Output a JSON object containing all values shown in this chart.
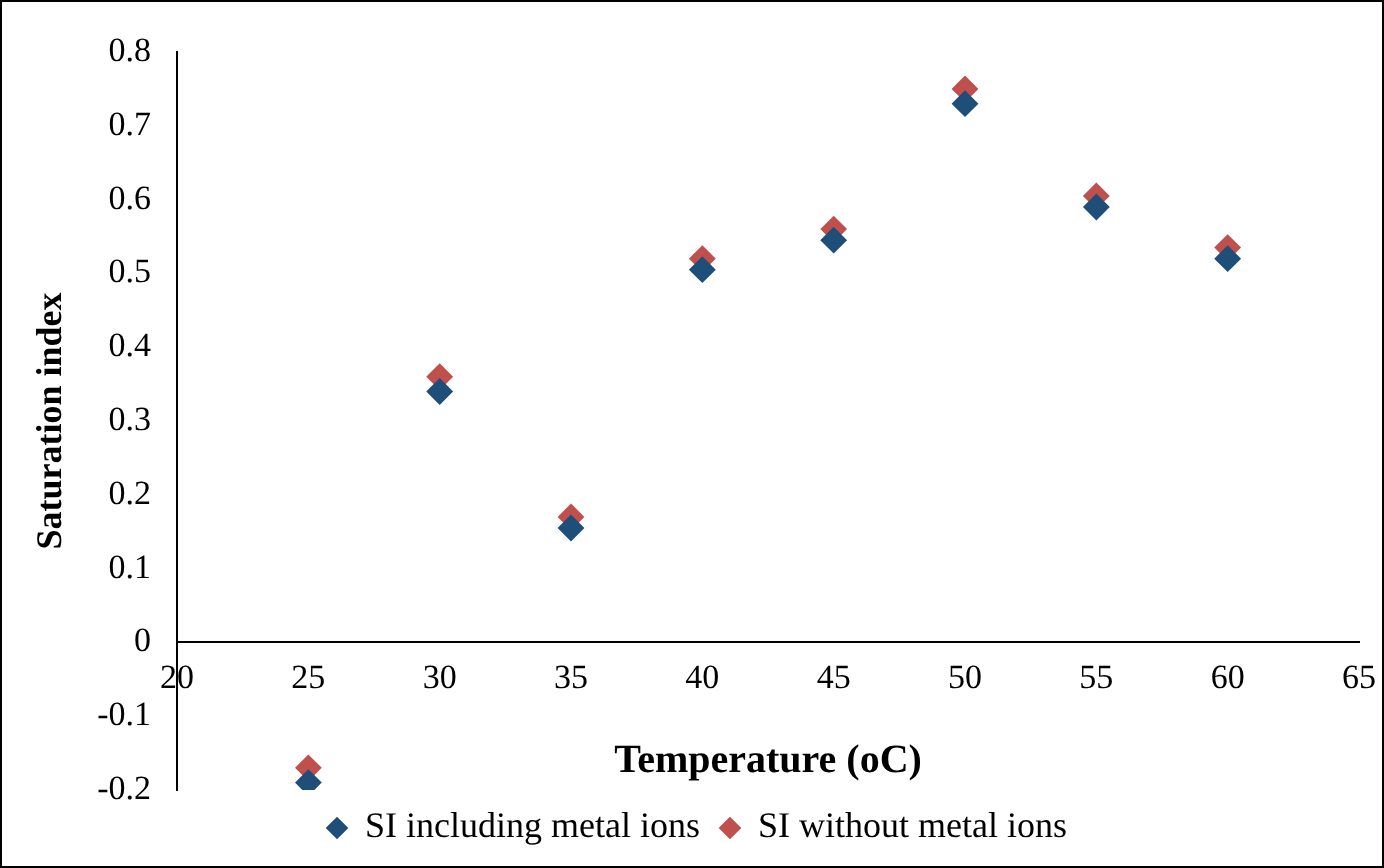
{
  "chart_data": {
    "type": "scatter",
    "xlabel": "Temperature (oC)",
    "ylabel": "Saturation index",
    "x": [
      25,
      30,
      35,
      40,
      45,
      50,
      55,
      60
    ],
    "series": [
      {
        "name": "SI including metal ions",
        "color": "#1f4e79",
        "values": [
          -0.19,
          0.34,
          0.155,
          0.505,
          0.545,
          0.73,
          0.59,
          0.52
        ]
      },
      {
        "name": "SI without metal ions",
        "color": "#c0504d",
        "values": [
          -0.17,
          0.36,
          0.17,
          0.52,
          0.56,
          0.75,
          0.605,
          0.535
        ]
      }
    ],
    "xlim": [
      20,
      65
    ],
    "xticks": [
      20,
      25,
      30,
      35,
      40,
      45,
      50,
      55,
      60,
      65
    ],
    "ylim": [
      -0.2,
      0.8
    ],
    "yticks": [
      -0.2,
      -0.1,
      0,
      0.1,
      0.2,
      0.3,
      0.4,
      0.5,
      0.6,
      0.7,
      0.8
    ],
    "grid": false,
    "legend": "bottom",
    "marker": "diamond"
  }
}
